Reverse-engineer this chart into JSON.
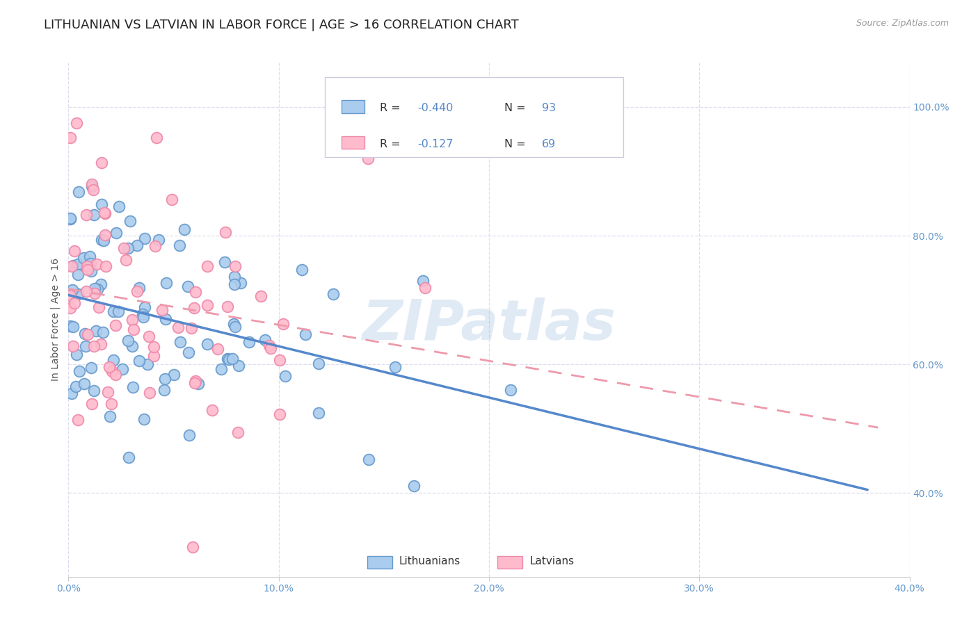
{
  "title": "LITHUANIAN VS LATVIAN IN LABOR FORCE | AGE > 16 CORRELATION CHART",
  "source": "Source: ZipAtlas.com",
  "ylabel": "In Labor Force | Age > 16",
  "xlim": [
    0.0,
    0.4
  ],
  "ylim_low": 0.27,
  "ylim_high": 1.07,
  "xtick_labels": [
    "0.0%",
    "10.0%",
    "20.0%",
    "30.0%",
    "40.0%"
  ],
  "xtick_values": [
    0.0,
    0.1,
    0.2,
    0.3,
    0.4
  ],
  "ytick_labels": [
    "40.0%",
    "60.0%",
    "80.0%",
    "100.0%"
  ],
  "ytick_values": [
    0.4,
    0.6,
    0.8,
    1.0
  ],
  "blue_face": "#AACCEE",
  "blue_edge": "#6699CC",
  "pink_face": "#FFBBCC",
  "pink_edge": "#EE88AA",
  "blue_line_color": "#5588CC",
  "pink_line_color": "#EE99AA",
  "legend_r1": "R = -0.440",
  "legend_n1": "N = 93",
  "legend_r2": "R =  -0.127",
  "legend_n2": "N = 69",
  "r1": -0.44,
  "r2": -0.127,
  "n1": 93,
  "n2": 69,
  "watermark": "ZIPatlas",
  "background_color": "#FFFFFF",
  "grid_color": "#DDDDEE",
  "title_fontsize": 13,
  "axis_label_fontsize": 10,
  "tick_fontsize": 10,
  "source_fontsize": 9,
  "legend_text_color": "#333333",
  "legend_value_color": "#5588CC",
  "tick_color": "#6699CC"
}
